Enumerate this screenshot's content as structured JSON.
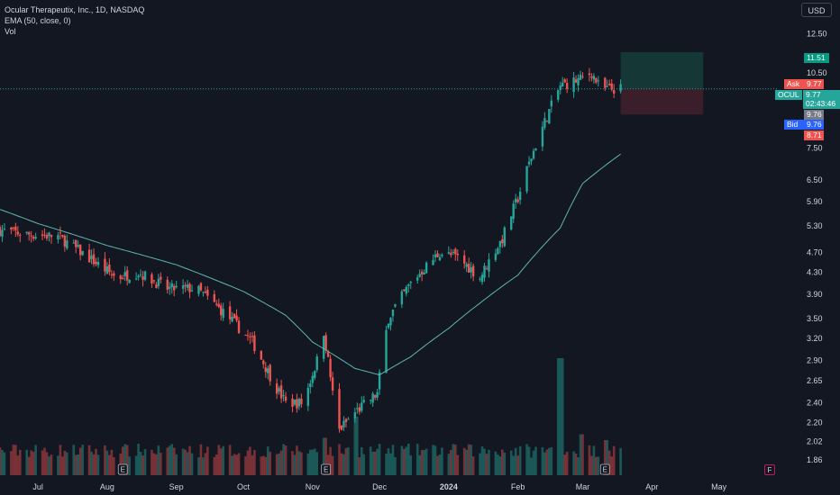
{
  "legend": {
    "title": "Ocular Therapeutix, Inc., 1D, NASDAQ",
    "indicator": "EMA (50, close, 0)",
    "volume": "Vol"
  },
  "currency_button": "USD",
  "price_tags": {
    "ask_label": "Ask",
    "ask_value": "9.77",
    "symbol": "OCUL",
    "last_value": "9.77",
    "countdown": "02:43:46",
    "bid_level": "9.76",
    "bid_label": "Bid",
    "bid_value": "9.76",
    "target_value": "11.51",
    "stop_value": "8.71"
  },
  "f_badge": "F",
  "earnings_marker": "E",
  "colors": {
    "background": "#131722",
    "up": "#26a69a",
    "down": "#ef5350",
    "ema": "#5fb6b0",
    "target_zone": "#163b38",
    "stop_zone": "#3f1f2a",
    "ask_tag": "#ef5350",
    "bid_tag": "#2962ff"
  },
  "chart_data": {
    "type": "candlestick",
    "timeframe": "1D",
    "yaxis_scale": "log",
    "ylim": [
      1.78,
      14.3
    ],
    "y_ticks": [
      "12.50",
      "10.50",
      "7.50",
      "6.50",
      "5.90",
      "5.30",
      "4.70",
      "4.30",
      "3.90",
      "3.50",
      "3.20",
      "2.90",
      "2.65",
      "2.40",
      "2.20",
      "2.02",
      "1.86"
    ],
    "x_ticks": [
      "Jul",
      "Aug",
      "Sep",
      "Oct",
      "Nov",
      "Dec",
      "2024",
      "Feb",
      "Mar",
      "Apr",
      "May"
    ],
    "x_tick_dates": [
      "2023-07-01",
      "2023-08-01",
      "2023-09-01",
      "2023-10-01",
      "2023-11-01",
      "2023-12-01",
      "2024-01-01",
      "2024-02-01",
      "2024-03-01",
      "2024-04-01",
      "2024-05-01"
    ],
    "x_range": [
      "2023-06-14",
      "2024-05-27"
    ],
    "grid": false,
    "current_price": 9.77,
    "position": {
      "type": "long",
      "entry": 9.77,
      "target": 11.51,
      "stop": 8.71,
      "start": "2024-03-18",
      "end": "2024-04-24"
    },
    "earnings_dates": [
      "2023-08-08",
      "2023-11-07",
      "2024-03-11"
    ],
    "ohlc_anchors": {
      "dates": [
        "2023-06-14",
        "2023-06-25",
        "2023-07-10",
        "2023-07-25",
        "2023-08-05",
        "2023-08-15",
        "2023-08-28",
        "2023-09-10",
        "2023-09-25",
        "2023-10-05",
        "2023-10-15",
        "2023-10-20",
        "2023-10-28",
        "2023-11-03",
        "2023-11-06",
        "2023-11-12",
        "2023-11-20",
        "2023-11-30",
        "2023-12-05",
        "2023-12-15",
        "2023-12-28",
        "2024-01-05",
        "2024-01-15",
        "2024-01-25",
        "2024-02-01",
        "2024-02-10",
        "2024-02-20",
        "2024-02-23",
        "2024-02-29",
        "2024-03-05",
        "2024-03-09",
        "2024-03-18"
      ],
      "close": [
        5.2,
        5.1,
        5.05,
        4.55,
        4.2,
        4.3,
        4.0,
        4.0,
        3.5,
        3.15,
        2.6,
        2.4,
        2.4,
        2.9,
        3.3,
        2.1,
        2.3,
        2.5,
        3.5,
        4.1,
        4.7,
        4.6,
        4.2,
        5.0,
        6.0,
        7.8,
        9.9,
        10.0,
        10.2,
        10.5,
        9.75,
        9.77
      ]
    },
    "ema_anchors": {
      "dates": [
        "2023-06-14",
        "2023-07-01",
        "2023-08-01",
        "2023-09-01",
        "2023-10-01",
        "2023-10-20",
        "2023-11-01",
        "2023-11-20",
        "2023-12-01",
        "2023-12-15",
        "2024-01-01",
        "2024-01-15",
        "2024-02-01",
        "2024-02-20",
        "2024-03-01",
        "2024-03-18"
      ],
      "values": [
        5.7,
        5.35,
        4.85,
        4.45,
        3.95,
        3.55,
        3.15,
        2.8,
        2.72,
        2.95,
        3.35,
        3.75,
        4.25,
        5.25,
        6.4,
        7.3
      ]
    },
    "volume_bars_relative": {
      "note_dates": [
        "2023-11-06",
        "2023-11-20",
        "2024-02-20",
        "2024-03-01",
        "2024-03-11"
      ],
      "peaks": [
        0.32,
        0.5,
        1.0,
        0.35,
        0.3
      ],
      "baseline": 0.15
    }
  }
}
